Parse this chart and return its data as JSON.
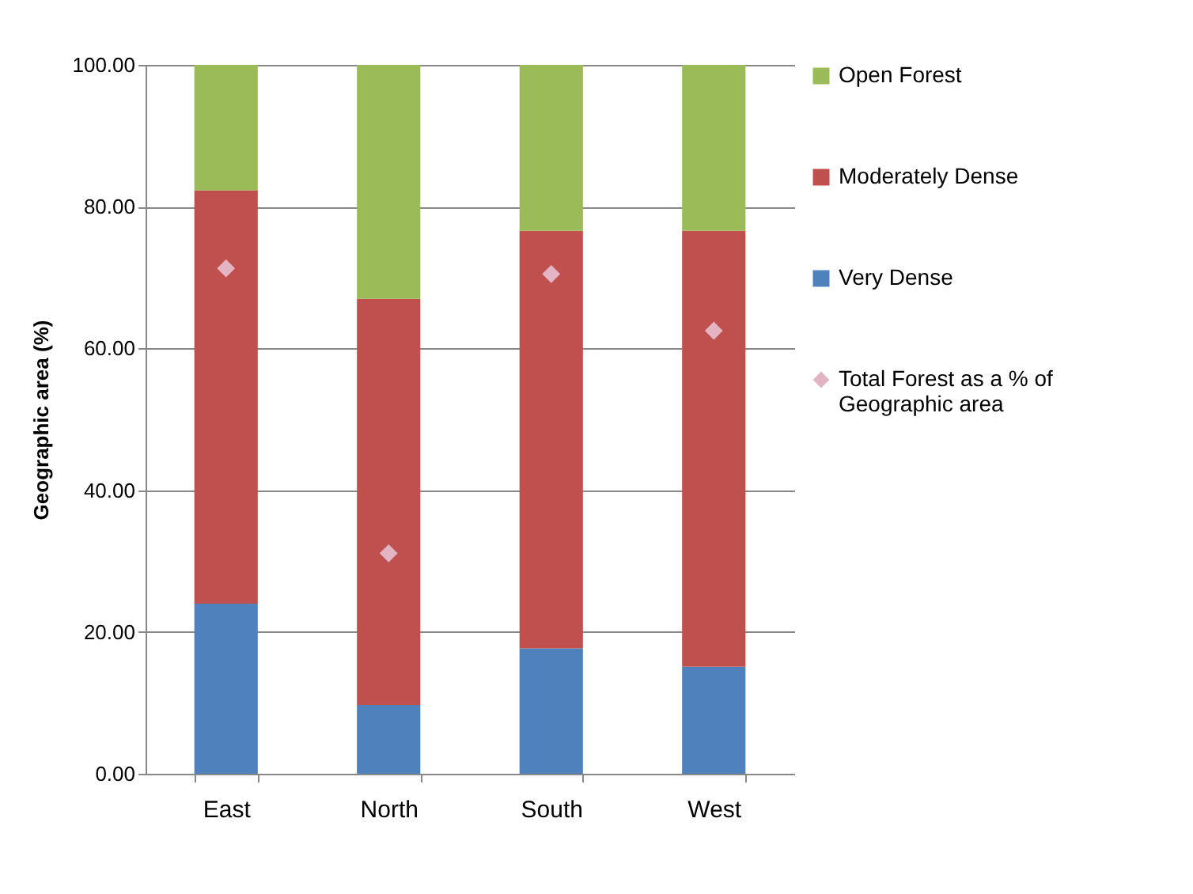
{
  "chart_data": {
    "type": "bar",
    "stacked": true,
    "ylabel": "Geographic area (%)",
    "categories": [
      "East",
      "North",
      "South",
      "West"
    ],
    "series": [
      {
        "name": "Very Dense",
        "color": "#4f81bd",
        "values": [
          24.0,
          9.7,
          17.7,
          15.1
        ]
      },
      {
        "name": "Moderately Dense",
        "color": "#c0504d",
        "values": [
          58.3,
          57.3,
          58.9,
          61.5
        ]
      },
      {
        "name": "Open Forest",
        "color": "#9bbb59",
        "values": [
          17.7,
          33.0,
          23.4,
          23.4
        ]
      },
      {
        "name": "Total Forest as a % of Geographic area",
        "type": "scatter",
        "marker": "diamond",
        "color": "#e3b5c4",
        "x": [
          "East",
          "North",
          "South",
          "West"
        ],
        "values": [
          71.3,
          31.1,
          70.5,
          62.5
        ]
      }
    ],
    "ylim": [
      0,
      100
    ],
    "yticks": [
      {
        "value": 0,
        "label": "0.00"
      },
      {
        "value": 20,
        "label": "20.00"
      },
      {
        "value": 40,
        "label": "40.00"
      },
      {
        "value": 60,
        "label": "60.00"
      },
      {
        "value": 80,
        "label": "80.00"
      },
      {
        "value": 100,
        "label": "100.00"
      }
    ],
    "grid": "y",
    "legend": "right"
  }
}
